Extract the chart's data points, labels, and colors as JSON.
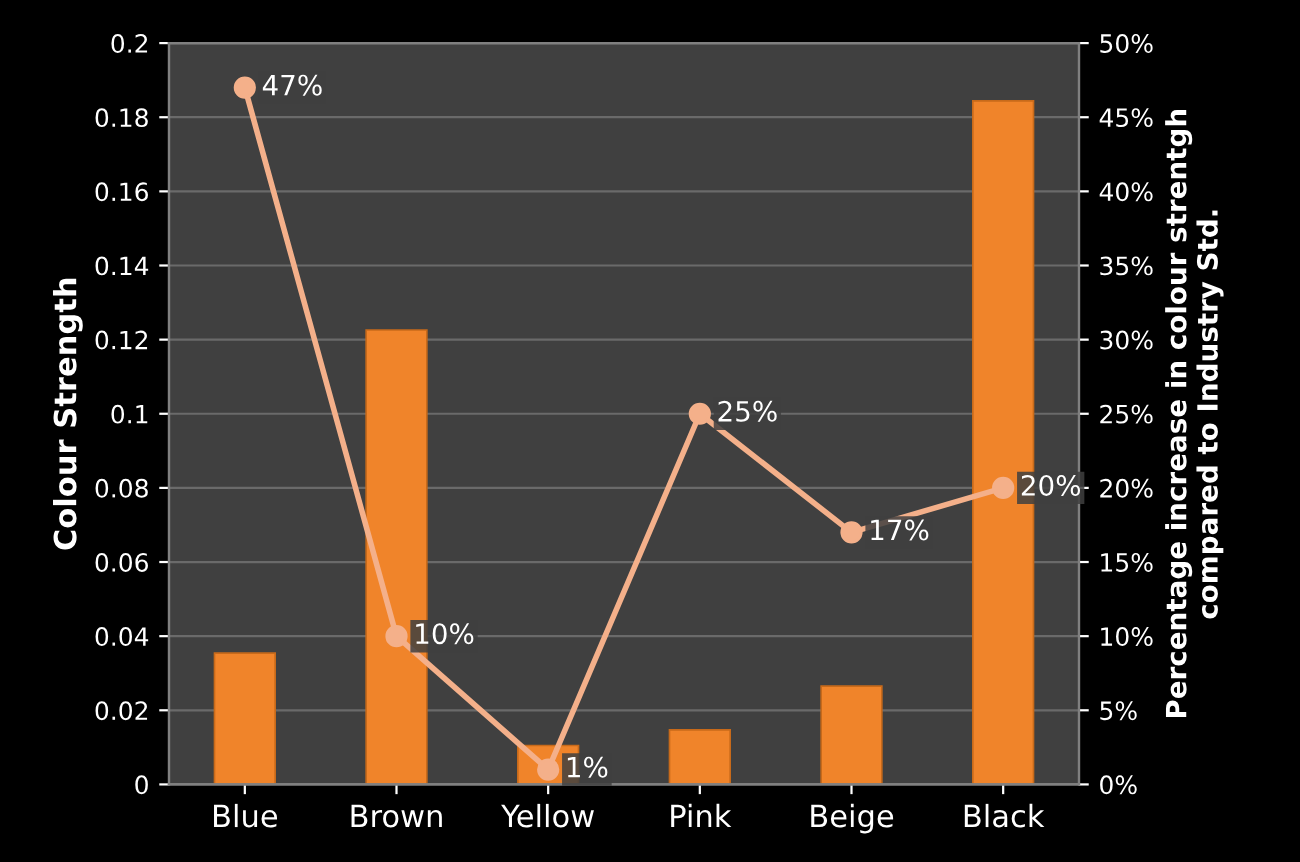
{
  "chart_data": {
    "type": "bar",
    "categories": [
      "Blue",
      "Brown",
      "Yellow",
      "Pink",
      "Beige",
      "Black"
    ],
    "ylabel": "Colour Strength",
    "y2label": "Percentage increase in colour strentgh\ncompared to Industry Std.",
    "series": [
      {
        "color": "#f0842a",
        "values": [
          0.0354,
          0.1226,
          0.0105,
          0.0147,
          0.0265,
          0.1844
        ]
      },
      {
        "type": "line",
        "axis": "y2",
        "color": "#f4b08a",
        "marker": "circle",
        "values": [
          47,
          10,
          1,
          25,
          17,
          20
        ],
        "value_labels": [
          "47%",
          "10%",
          "1%",
          "25%",
          "17%",
          "20%"
        ]
      }
    ],
    "ylim": [
      0,
      0.2
    ],
    "yticks": [
      0,
      0.02,
      0.04,
      0.06,
      0.08,
      0.1,
      0.12,
      0.14,
      0.16,
      0.18,
      0.2
    ],
    "y2lim": [
      0,
      50
    ],
    "y2ticks": [
      {
        "value": 0,
        "label": "0%"
      },
      {
        "value": 5,
        "label": "5%"
      },
      {
        "value": 10,
        "label": "10%"
      },
      {
        "value": 15,
        "label": "15%"
      },
      {
        "value": 20,
        "label": "20%"
      },
      {
        "value": 25,
        "label": "25%"
      },
      {
        "value": 30,
        "label": "30%"
      },
      {
        "value": 35,
        "label": "35%"
      },
      {
        "value": 40,
        "label": "40%"
      },
      {
        "value": 45,
        "label": "45%"
      },
      {
        "value": 50,
        "label": "50%"
      }
    ],
    "grid": "y",
    "legend": false
  }
}
